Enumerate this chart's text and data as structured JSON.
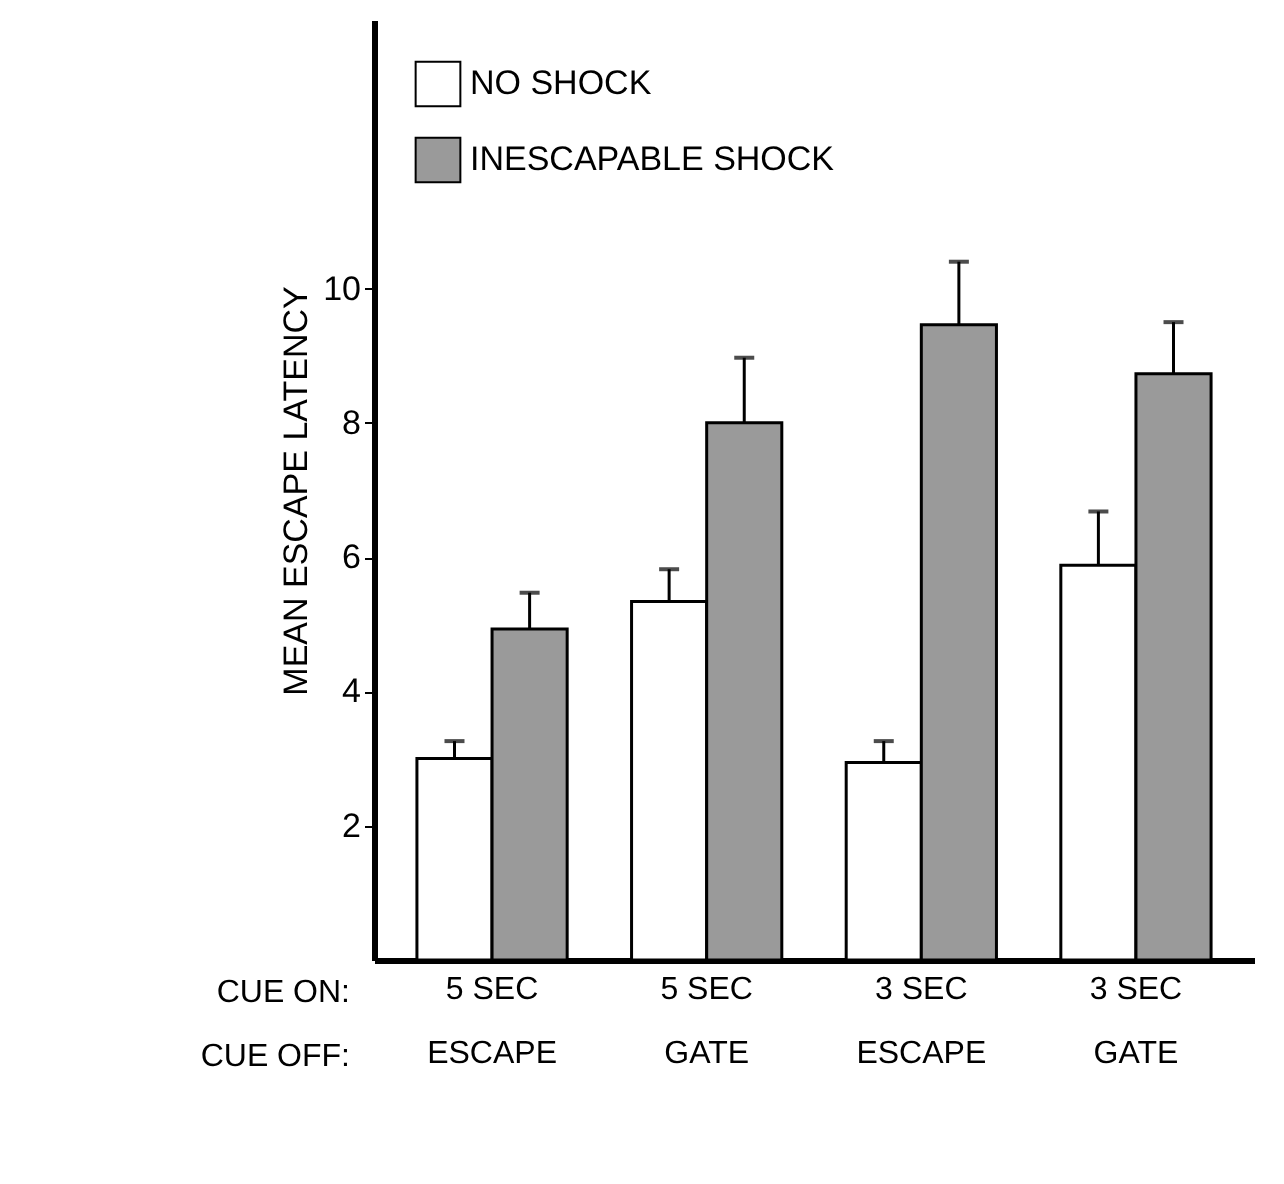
{
  "chart_data": {
    "type": "bar",
    "ylabel": "MEAN ESCAPE LATENCY",
    "categories": [
      "5 SEC\nESCAPE",
      "5 SEC\nGATE",
      "3 SEC\nESCAPE",
      "3 SEC\nGATE"
    ],
    "series": [
      {
        "name": "NO SHOCK",
        "color": "#ffffff",
        "values": [
          3.0,
          5.34,
          2.94,
          5.88
        ],
        "errors": [
          [
            3.0,
            3.26
          ],
          [
            5.34,
            5.82
          ],
          [
            2.94,
            3.26
          ],
          [
            5.88,
            6.68
          ]
        ]
      },
      {
        "name": "INESCAPABLE SHOCK",
        "color": "#9a9a9a",
        "values": [
          4.93,
          8.0,
          9.46,
          8.73
        ],
        "errors": [
          [
            4.93,
            5.47
          ],
          [
            8.0,
            8.97
          ],
          [
            9.46,
            10.4
          ],
          [
            8.73,
            9.5
          ]
        ]
      }
    ],
    "ylim": [
      0,
      14
    ],
    "yticks": [
      2,
      4,
      6,
      8,
      10
    ],
    "grid": false,
    "legend": "top left",
    "annotations": [
      "CUE ON:",
      "CUE OFF:"
    ]
  }
}
